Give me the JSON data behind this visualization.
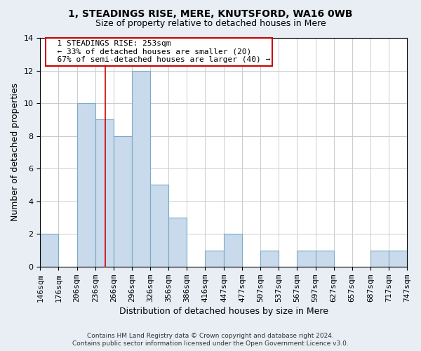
{
  "title1": "1, STEADINGS RISE, MERE, KNUTSFORD, WA16 0WB",
  "title2": "Size of property relative to detached houses in Mere",
  "xlabel": "Distribution of detached houses by size in Mere",
  "ylabel": "Number of detached properties",
  "bin_labels": [
    "146sqm",
    "176sqm",
    "206sqm",
    "236sqm",
    "266sqm",
    "296sqm",
    "326sqm",
    "356sqm",
    "386sqm",
    "416sqm",
    "447sqm",
    "477sqm",
    "507sqm",
    "537sqm",
    "567sqm",
    "597sqm",
    "627sqm",
    "657sqm",
    "687sqm",
    "717sqm",
    "747sqm"
  ],
  "bin_edges": [
    146,
    176,
    206,
    236,
    266,
    296,
    326,
    356,
    386,
    416,
    447,
    477,
    507,
    537,
    567,
    597,
    627,
    657,
    687,
    717,
    747
  ],
  "counts": [
    2,
    0,
    10,
    9,
    8,
    12,
    5,
    3,
    0,
    1,
    2,
    0,
    1,
    0,
    1,
    1,
    0,
    0,
    1,
    1,
    0
  ],
  "bar_color": "#c8daeb",
  "bar_edge_color": "#7aaac8",
  "property_size": 253,
  "annotation_title": "1 STEADINGS RISE: 253sqm",
  "annotation_line1": "← 33% of detached houses are smaller (20)",
  "annotation_line2": "67% of semi-detached houses are larger (40) →",
  "annotation_box_edge": "#cc0000",
  "vline_color": "#cc0000",
  "ylim": [
    0,
    14
  ],
  "yticks": [
    0,
    2,
    4,
    6,
    8,
    10,
    12,
    14
  ],
  "footer1": "Contains HM Land Registry data © Crown copyright and database right 2024.",
  "footer2": "Contains public sector information licensed under the Open Government Licence v3.0.",
  "bg_color": "#e8eef4",
  "plot_bg_color": "#ffffff",
  "grid_color": "#cccccc",
  "title1_fontsize": 10,
  "title2_fontsize": 9,
  "xlabel_fontsize": 9,
  "ylabel_fontsize": 9,
  "tick_fontsize": 8,
  "footer_fontsize": 6.5,
  "ann_fontsize": 8
}
